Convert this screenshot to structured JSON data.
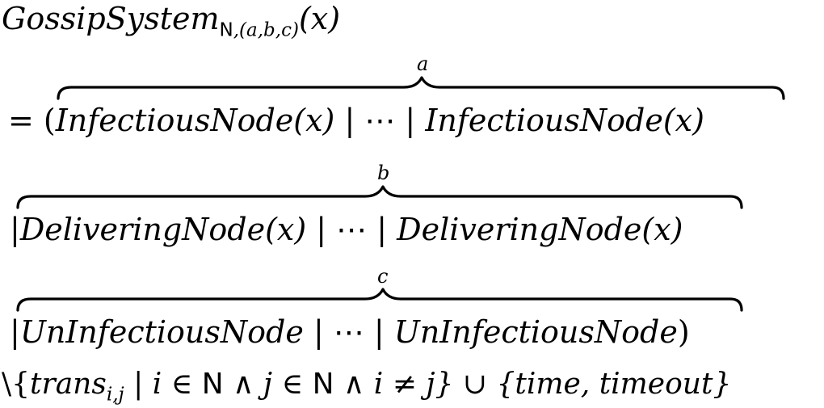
{
  "line0": {
    "name": "GossipSystem",
    "sub_set": "N",
    "sub_params": ",(a,b,c)",
    "arg": "(x)"
  },
  "line1": {
    "prefix": "= (",
    "count": "a",
    "term_start": "InfectiousNode(x)",
    "sep1": " | ",
    "dots": "⋯",
    "sep2": " | ",
    "term_end": "InfectiousNode(x)"
  },
  "line2": {
    "prefix": "|",
    "count": "b",
    "term_start": "DeliveringNode(x)",
    "sep1": " | ",
    "dots": "⋯",
    "sep2": " | ",
    "term_end": "DeliveringNode(x)"
  },
  "line3": {
    "prefix": "|",
    "count": "c",
    "term_start": "UnInfectiousNode",
    "sep1": " | ",
    "dots": "⋯",
    "sep2": " | ",
    "term_end": "UnInfectiousNode",
    "suffix": ")"
  },
  "line4": {
    "setminus": "\\{",
    "trans": "trans",
    "trans_sub": "i,j",
    "cond_a": " | i ∈ ",
    "set_a": "N",
    "and_a": " ∧ j ∈ ",
    "set_b": "N",
    "and_b": " ∧ i ≠ j} ∪ {time, timeout}"
  }
}
